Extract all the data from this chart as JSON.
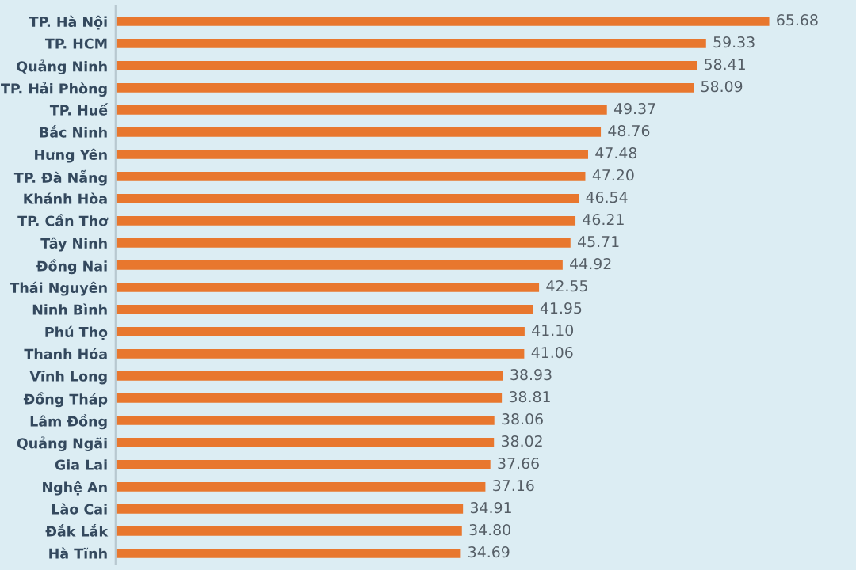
{
  "chart_data": {
    "type": "bar",
    "orientation": "horizontal",
    "data_labels": true,
    "grid": false,
    "legend": false,
    "tick_labels": "y",
    "categories": [
      "TP. Hà Nội",
      "TP. HCM",
      "Quảng Ninh",
      "TP. Hải Phòng",
      "TP. Huế",
      "Bắc Ninh",
      "Hưng Yên",
      "TP. Đà Nẵng",
      "Khánh Hòa",
      "TP. Cần Thơ",
      "Tây Ninh",
      "Đồng Nai",
      "Thái Nguyên",
      "Ninh Bình",
      "Phú Thọ",
      "Thanh Hóa",
      "Vĩnh Long",
      "Đồng Tháp",
      "Lâm Đồng",
      "Quảng Ngãi",
      "Gia Lai",
      "Nghệ An",
      "Lào Cai",
      "Đắk Lắk",
      "Hà Tĩnh"
    ],
    "values": [
      65.68,
      59.33,
      58.41,
      58.09,
      49.37,
      48.76,
      47.48,
      47.2,
      46.54,
      46.21,
      45.71,
      44.92,
      42.55,
      41.95,
      41.1,
      41.06,
      38.93,
      38.81,
      38.06,
      38.02,
      37.66,
      37.16,
      34.91,
      34.8,
      34.69
    ],
    "value_labels": [
      "65.68",
      "59.33",
      "58.41",
      "58.09",
      "49.37",
      "48.76",
      "47.48",
      "47.20",
      "46.54",
      "46.21",
      "45.71",
      "44.92",
      "42.55",
      "41.95",
      "41.10",
      "41.06",
      "38.93",
      "38.81",
      "38.06",
      "38.02",
      "37.66",
      "37.16",
      "34.91",
      "34.80",
      "34.69"
    ],
    "color": "#e8772e"
  }
}
